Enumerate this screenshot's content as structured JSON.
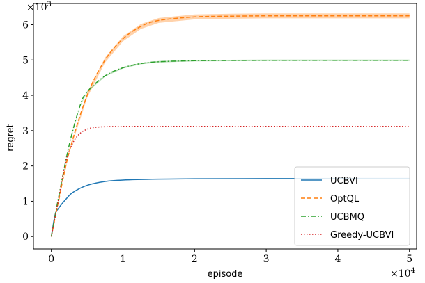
{
  "chart_data": {
    "type": "line",
    "title": "",
    "xlabel": "episode",
    "ylabel": "regret",
    "x_multiplier_label": "×10",
    "x_multiplier_exp": "4",
    "y_multiplier_label": "×10",
    "y_multiplier_exp": "3",
    "xlim": [
      -0.25,
      5.1
    ],
    "ylim": [
      -0.35,
      6.6
    ],
    "xticks": [
      0,
      1,
      2,
      3,
      4,
      5
    ],
    "xtick_labels": [
      "0",
      "1",
      "2",
      "3",
      "4",
      "5"
    ],
    "yticks": [
      0,
      1,
      2,
      3,
      4,
      5,
      6
    ],
    "ytick_labels": [
      "0",
      "1",
      "2",
      "3",
      "4",
      "5",
      "6"
    ],
    "grid": false,
    "legend_position": "lower-right",
    "series": [
      {
        "name": "UCBVI",
        "color": "#1f77b4",
        "dash": "solid",
        "band": 0,
        "x": [
          0,
          0.05,
          0.1,
          0.2,
          0.3,
          0.5,
          0.75,
          1.0,
          1.5,
          2.0,
          3.0,
          4.0,
          5.0
        ],
        "y": [
          0,
          0.6,
          0.8,
          1.05,
          1.25,
          1.45,
          1.56,
          1.6,
          1.625,
          1.635,
          1.64,
          1.645,
          1.645
        ]
      },
      {
        "name": "OptQL",
        "color": "#ff7f0e",
        "dash": "dashed",
        "band": 0.07,
        "x": [
          0,
          0.1,
          0.25,
          0.5,
          0.75,
          1.0,
          1.25,
          1.5,
          2.0,
          2.5,
          3.0,
          4.0,
          5.0
        ],
        "y": [
          0,
          1.0,
          2.4,
          4.0,
          5.0,
          5.6,
          5.95,
          6.12,
          6.22,
          6.24,
          6.25,
          6.25,
          6.25
        ]
      },
      {
        "name": "UCBMQ",
        "color": "#2ca02c",
        "dash": "dashdot",
        "band": 0.02,
        "x": [
          0,
          0.1,
          0.25,
          0.4,
          0.5,
          0.75,
          1.0,
          1.25,
          1.5,
          2.0,
          3.0,
          4.0,
          5.0
        ],
        "y": [
          0,
          1.1,
          2.6,
          3.7,
          4.1,
          4.55,
          4.78,
          4.9,
          4.95,
          4.98,
          4.99,
          4.99,
          4.99
        ]
      },
      {
        "name": "Greedy-UCBVI",
        "color": "#d62728",
        "dash": "dotted",
        "band": 0,
        "x": [
          0,
          0.1,
          0.2,
          0.3,
          0.4,
          0.5,
          0.6,
          0.75,
          1.0,
          1.5,
          2.0,
          3.0,
          5.0
        ],
        "y": [
          0,
          1.05,
          2.1,
          2.65,
          2.92,
          3.04,
          3.09,
          3.11,
          3.12,
          3.12,
          3.12,
          3.12,
          3.12
        ]
      }
    ]
  }
}
